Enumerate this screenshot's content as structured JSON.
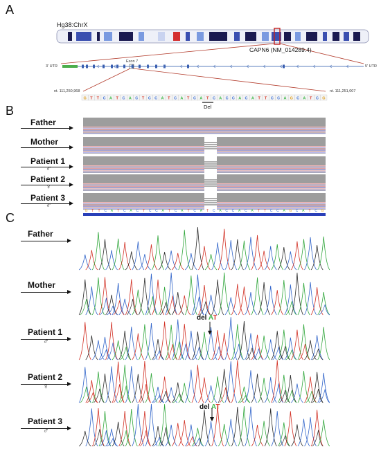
{
  "panels": {
    "a": "A",
    "b": "B",
    "c": "C"
  },
  "panel_a": {
    "chrom_label": "Hg38:ChrX",
    "gene_label": "CAPN6 (NM_014289.4)",
    "utr3": "3' UTR",
    "utr5": "5' UTR",
    "exon_label": "Exon 7",
    "nt_left": "nt. 111,250,968",
    "nt_right": "nt. 111,251,007",
    "del_label": "Del",
    "sequence": [
      "G",
      "T",
      "T",
      "C",
      "A",
      "T",
      "C",
      "A",
      "C",
      "T",
      "C",
      "C",
      "A",
      "T",
      "C",
      "A",
      "T",
      "C",
      "A",
      "T",
      "C",
      "A",
      "C",
      "C",
      "A",
      "C",
      "A",
      "T",
      "T",
      "C",
      "C",
      "A",
      "G",
      "C",
      "A",
      "T",
      "C",
      "G"
    ],
    "base_colors": {
      "A": "#3fb94a",
      "C": "#3a6fd8",
      "G": "#e0a020",
      "T": "#d83a2a"
    },
    "band_colors": [
      "#1a1a50",
      "#3a4fb0",
      "#7a9ae0",
      "#c9d3f0",
      "#d43030",
      "#e9ecf7"
    ]
  },
  "panel_b": {
    "rows": [
      {
        "name": "Father",
        "sex": ""
      },
      {
        "name": "Mother",
        "sex": ""
      },
      {
        "name": "Patient 1",
        "sex": "♂"
      },
      {
        "name": "Patient 2",
        "sex": "♀"
      },
      {
        "name": "Patient 3",
        "sex": "♂"
      }
    ]
  },
  "panel_c": {
    "traces": [
      {
        "name": "Father",
        "sex": "",
        "del": false
      },
      {
        "name": "Mother",
        "sex": "",
        "del": false
      },
      {
        "name": "Patient 1",
        "sex": "♂",
        "del": true
      },
      {
        "name": "Patient 2",
        "sex": "♀",
        "del": false
      },
      {
        "name": "Patient 3",
        "sex": "♂",
        "del": true
      }
    ],
    "del_text": "del",
    "del_a": "A",
    "del_t": "T"
  }
}
